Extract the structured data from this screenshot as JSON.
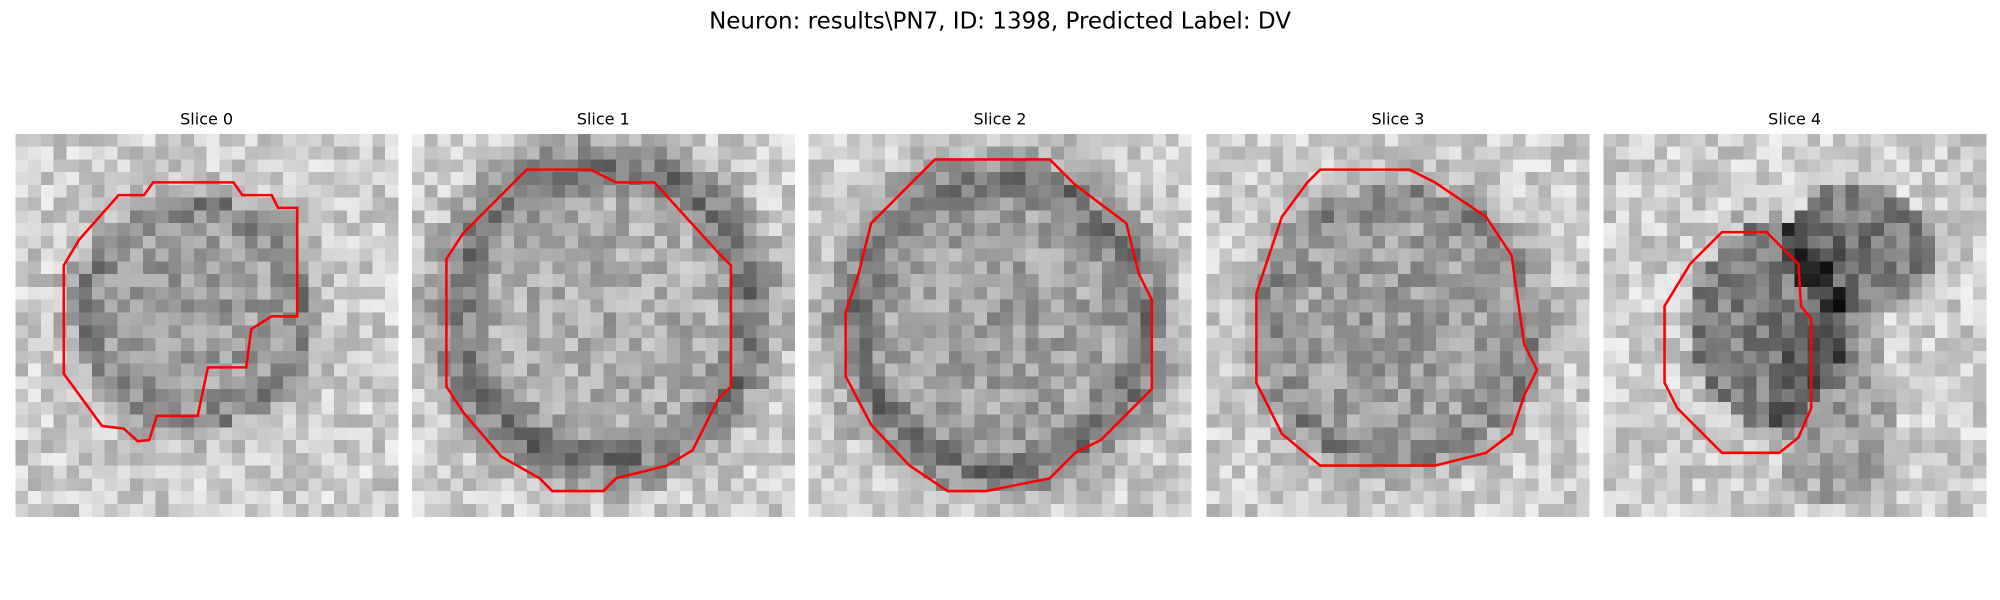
{
  "title": "Neuron: results\\PN7, ID: 1398, Predicted Label: DV",
  "slices": [
    {
      "title": "Slice 0"
    },
    {
      "title": "Slice 1"
    },
    {
      "title": "Slice 2"
    },
    {
      "title": "Slice 3"
    },
    {
      "title": "Slice 4"
    }
  ]
}
